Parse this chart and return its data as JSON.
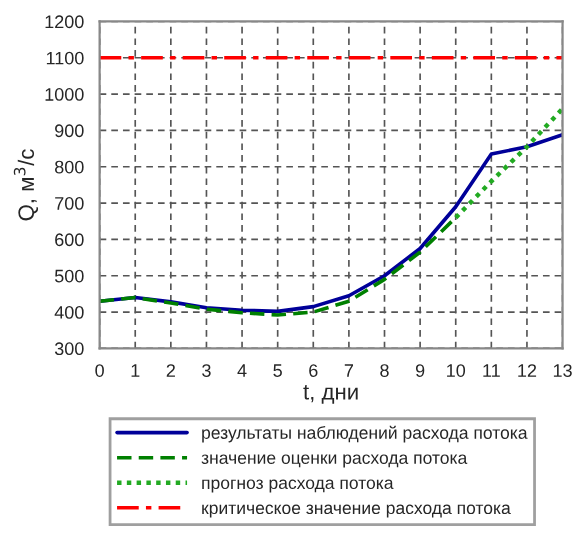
{
  "chart_data": {
    "type": "line",
    "xlabel": "t, дни",
    "ylabel": "Q, м$^{3}$/с",
    "x": [
      0,
      1,
      2,
      3,
      4,
      5,
      6,
      7,
      8,
      9,
      10,
      11,
      12,
      13
    ],
    "series": [
      {
        "name": "результаты наблюдений расхода потока",
        "color": "#000099",
        "line_style": "solid",
        "values": [
          430,
          440,
          428,
          412,
          405,
          402,
          415,
          445,
          500,
          575,
          690,
          835,
          855,
          888
        ]
      },
      {
        "name": "значение оценки расхода потока",
        "color": "#008000",
        "line_style": "dashed",
        "values": [
          430,
          440,
          425,
          408,
          398,
          392,
          400,
          430,
          490,
          565,
          660,
          null,
          null,
          null
        ]
      },
      {
        "name": "прогноз расхода потока",
        "color": "#22aa22",
        "line_style": "dotted",
        "values": [
          null,
          null,
          null,
          null,
          null,
          null,
          null,
          null,
          null,
          null,
          660,
          760,
          855,
          960
        ]
      },
      {
        "name": "критическое значение расхода потока",
        "color": "#ff0000",
        "line_style": "dashdot",
        "values": [
          1100,
          1100,
          1100,
          1100,
          1100,
          1100,
          1100,
          1100,
          1100,
          1100,
          1100,
          1100,
          1100,
          1100
        ]
      }
    ],
    "xlim": [
      0,
      13
    ],
    "xticks": [
      0,
      1,
      2,
      3,
      4,
      5,
      6,
      7,
      8,
      9,
      10,
      11,
      12,
      13
    ],
    "ylim": [
      300,
      1200
    ],
    "yticks": [
      300,
      400,
      500,
      600,
      700,
      800,
      900,
      1000,
      1100,
      1200
    ],
    "grid": true,
    "legend": "bottom"
  }
}
